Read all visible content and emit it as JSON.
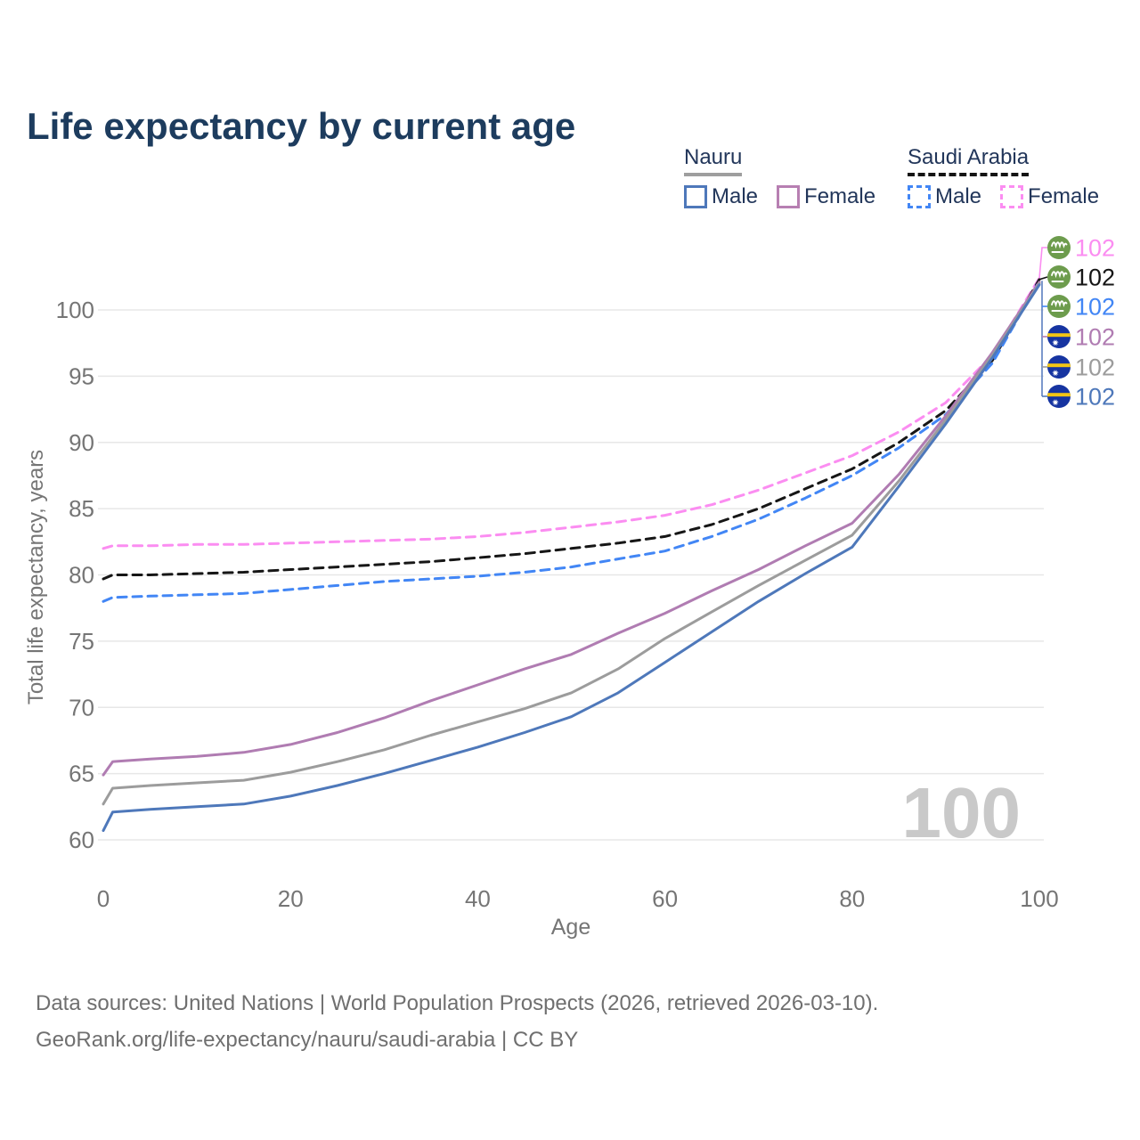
{
  "header": {
    "title": "Life expectancy by current age"
  },
  "legend": {
    "groups": [
      {
        "name": "Nauru",
        "line_style": "solid",
        "underline_color": "#9e9e9e",
        "items": [
          {
            "label": "Male",
            "color": "#4e78ba"
          },
          {
            "label": "Female",
            "color": "#b77fb2"
          }
        ]
      },
      {
        "name": "Saudi Arabia",
        "line_style": "dashed",
        "underline_color": "#141414",
        "items": [
          {
            "label": "Male",
            "color": "#4286f5"
          },
          {
            "label": "Female",
            "color": "#fb8df1"
          }
        ]
      }
    ]
  },
  "chart_data": {
    "type": "line",
    "title": "Life expectancy by current age",
    "xlabel": "Age",
    "ylabel": "Total life expectancy, years",
    "xlim": [
      0,
      100
    ],
    "ylim": [
      60,
      104
    ],
    "x_ticks": [
      0,
      20,
      40,
      60,
      80,
      100
    ],
    "y_ticks": [
      60,
      65,
      70,
      75,
      80,
      85,
      90,
      95,
      100
    ],
    "grid": "horizontal-only",
    "legend_position": "top-right",
    "watermark": "100",
    "x": [
      0,
      1,
      5,
      10,
      15,
      20,
      25,
      30,
      35,
      40,
      45,
      50,
      55,
      60,
      65,
      70,
      75,
      80,
      85,
      90,
      95,
      100
    ],
    "series": [
      {
        "name": "Saudi Arabia Female",
        "country": "Saudi Arabia",
        "sex": "Female",
        "dashed": true,
        "color": "#fb8df1",
        "flag": "saudi",
        "end_label": "102",
        "values": [
          82.0,
          82.2,
          82.2,
          82.3,
          82.3,
          82.4,
          82.5,
          82.6,
          82.7,
          82.9,
          83.2,
          83.6,
          84.0,
          84.5,
          85.3,
          86.4,
          87.7,
          89.0,
          90.8,
          93.0,
          96.6,
          102.4
        ]
      },
      {
        "name": "Saudi Arabia Both sexes",
        "country": "Saudi Arabia",
        "sex": "Both",
        "dashed": true,
        "color": "#161616",
        "flag": "saudi",
        "end_label": "102",
        "values": [
          79.7,
          80.0,
          80.0,
          80.1,
          80.2,
          80.4,
          80.6,
          80.8,
          81.0,
          81.3,
          81.6,
          82.0,
          82.4,
          82.9,
          83.8,
          85.0,
          86.5,
          88.0,
          90.0,
          92.4,
          96.2,
          102.3
        ]
      },
      {
        "name": "Saudi Arabia Male",
        "country": "Saudi Arabia",
        "sex": "Male",
        "dashed": true,
        "color": "#4286f5",
        "flag": "saudi",
        "end_label": "102",
        "values": [
          78.0,
          78.3,
          78.4,
          78.5,
          78.6,
          78.9,
          79.2,
          79.5,
          79.7,
          79.9,
          80.2,
          80.6,
          81.2,
          81.8,
          82.9,
          84.2,
          85.8,
          87.5,
          89.6,
          92.1,
          96.0,
          102.2
        ]
      },
      {
        "name": "Nauru Female",
        "country": "Nauru",
        "sex": "Female",
        "dashed": false,
        "color": "#b07cb2",
        "flag": "nauru",
        "end_label": "102",
        "values": [
          64.9,
          65.9,
          66.1,
          66.3,
          66.6,
          67.2,
          68.1,
          69.2,
          70.5,
          71.7,
          72.9,
          74.0,
          75.6,
          77.1,
          78.8,
          80.4,
          82.2,
          83.9,
          87.6,
          92.0,
          96.8,
          102.1
        ]
      },
      {
        "name": "Nauru Both sexes",
        "country": "Nauru",
        "sex": "Both",
        "dashed": false,
        "color": "#9c9c9c",
        "flag": "nauru",
        "end_label": "102",
        "values": [
          62.7,
          63.9,
          64.1,
          64.3,
          64.5,
          65.1,
          65.9,
          66.8,
          67.9,
          68.9,
          69.9,
          71.1,
          72.9,
          75.2,
          77.2,
          79.2,
          81.1,
          83.0,
          87.1,
          91.7,
          96.6,
          102.0
        ]
      },
      {
        "name": "Nauru Male",
        "country": "Nauru",
        "sex": "Male",
        "dashed": false,
        "color": "#4e78ba",
        "flag": "nauru",
        "end_label": "102",
        "values": [
          60.7,
          62.1,
          62.3,
          62.5,
          62.7,
          63.3,
          64.1,
          65.0,
          66.0,
          67.0,
          68.1,
          69.3,
          71.1,
          73.4,
          75.7,
          78.0,
          80.1,
          82.1,
          86.7,
          91.4,
          96.4,
          101.9
        ]
      }
    ],
    "annotations": {
      "big_axis_number": "100"
    },
    "colors": {
      "gridline": "#e7e7e7",
      "tick_label": "#757575",
      "axis_title": "#757575",
      "watermark": "#c9c9c9",
      "leader_bracket": "#5b7fc0",
      "saudi_flag_green": "#6d9c4d",
      "nauru_flag_blue": "#1634a1",
      "nauru_flag_yellow": "#f3c514"
    }
  },
  "footer": {
    "line1": "Data sources: United Nations | World Population Prospects (2026, retrieved 2026-03-10).",
    "line2": "GeoRank.org/life-expectancy/nauru/saudi-arabia | CC BY"
  }
}
